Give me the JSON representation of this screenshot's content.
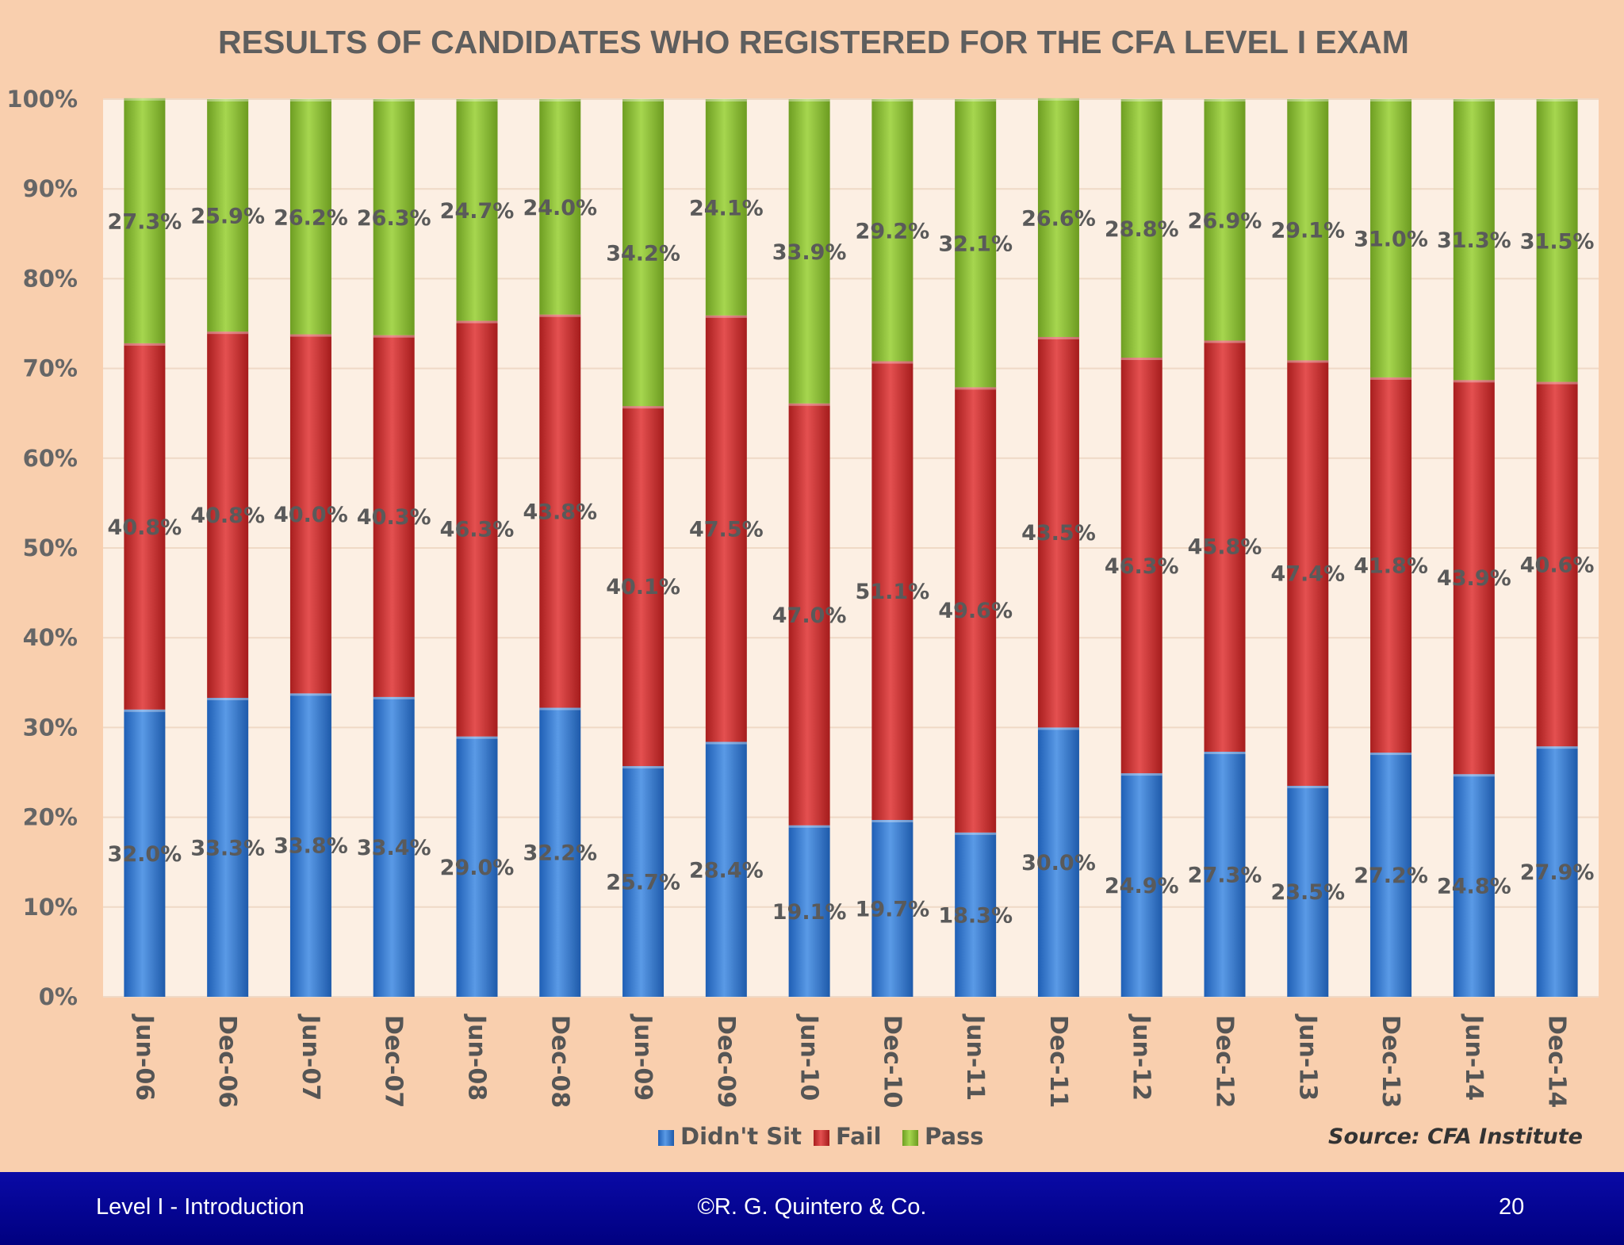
{
  "chart_data": {
    "type": "bar",
    "stacked": true,
    "title": "RESULTS OF CANDIDATES WHO REGISTERED FOR THE CFA LEVEL I EXAM",
    "categories": [
      "Jun-06",
      "Dec-06",
      "Jun-07",
      "Dec-07",
      "Jun-08",
      "Dec-08",
      "Jun-09",
      "Dec-09",
      "Jun-10",
      "Dec-10",
      "Jun-11",
      "Dec-11",
      "Jun-12",
      "Dec-12",
      "Jun-13",
      "Dec-13",
      "Jun-14",
      "Dec-14"
    ],
    "series": [
      {
        "name": "Didn't Sit",
        "color": "#3f86d6",
        "values": [
          32.0,
          33.3,
          33.8,
          33.4,
          29.0,
          32.2,
          25.7,
          28.4,
          19.1,
          19.7,
          18.3,
          30.0,
          24.9,
          27.3,
          23.5,
          27.2,
          24.8,
          27.9
        ]
      },
      {
        "name": "Fail",
        "color": "#cf3535",
        "values": [
          40.8,
          40.8,
          40.0,
          40.3,
          46.3,
          43.8,
          40.1,
          47.5,
          47.0,
          51.1,
          49.6,
          43.5,
          46.3,
          45.8,
          47.4,
          41.8,
          43.9,
          40.6
        ]
      },
      {
        "name": "Pass",
        "color": "#8dc03c",
        "values": [
          27.3,
          25.9,
          26.2,
          26.3,
          24.7,
          24.0,
          34.2,
          24.1,
          33.9,
          29.2,
          32.1,
          26.6,
          28.8,
          26.9,
          29.1,
          31.0,
          31.3,
          31.5
        ]
      }
    ],
    "ylim": [
      0,
      100
    ],
    "yticks": [
      "0%",
      "10%",
      "20%",
      "30%",
      "40%",
      "50%",
      "60%",
      "70%",
      "80%",
      "90%",
      "100%"
    ],
    "grid": true,
    "legend": "bottom-center",
    "source_label": "Source:  CFA Institute"
  },
  "footer": {
    "left": "Level I - Introduction",
    "center": "©R. G. Quintero & Co.",
    "right": "20"
  }
}
